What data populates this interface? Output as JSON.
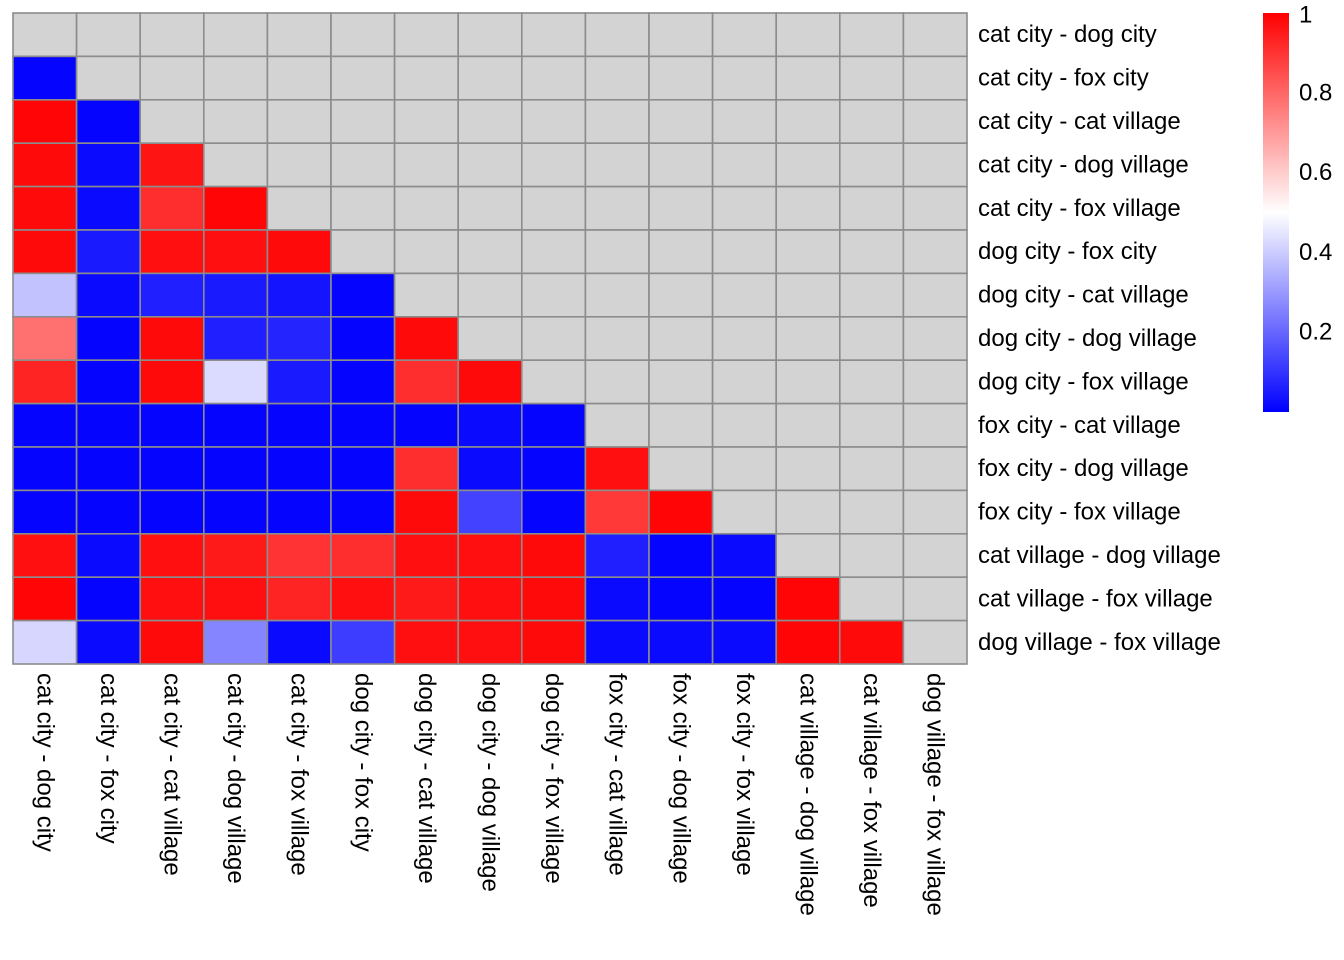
{
  "chart_data": {
    "type": "heatmap",
    "labels": [
      "cat city - dog city",
      "cat city - fox city",
      "cat city - cat village",
      "cat city - dog village",
      "cat city - fox village",
      "dog city - fox city",
      "dog city - cat village",
      "dog city - dog village",
      "dog city - fox village",
      "fox city - cat village",
      "fox city - dog village",
      "fox city - fox village",
      "cat village - dog village",
      "cat village - fox village",
      "dog village - fox village"
    ],
    "missing_color": "#d3d3d3",
    "color_scale": {
      "low": "#0000ff",
      "mid": "#ffffff",
      "high": "#ff0000",
      "min": 0,
      "mid_value": 0.5,
      "max": 1
    },
    "legend": {
      "position": "right",
      "ticks": [
        {
          "value": 1,
          "label": "1"
        },
        {
          "value": 0.8,
          "label": "0.8"
        },
        {
          "value": 0.6,
          "label": "0.6"
        },
        {
          "value": 0.4,
          "label": "0.4"
        },
        {
          "value": 0.2,
          "label": "0.2"
        }
      ]
    },
    "values": [
      [
        null,
        null,
        null,
        null,
        null,
        null,
        null,
        null,
        null,
        null,
        null,
        null,
        null,
        null,
        null
      ],
      [
        0.01,
        null,
        null,
        null,
        null,
        null,
        null,
        null,
        null,
        null,
        null,
        null,
        null,
        null,
        null
      ],
      [
        0.99,
        0.01,
        null,
        null,
        null,
        null,
        null,
        null,
        null,
        null,
        null,
        null,
        null,
        null,
        null
      ],
      [
        0.98,
        0.02,
        0.96,
        null,
        null,
        null,
        null,
        null,
        null,
        null,
        null,
        null,
        null,
        null,
        null
      ],
      [
        0.98,
        0.02,
        0.91,
        0.99,
        null,
        null,
        null,
        null,
        null,
        null,
        null,
        null,
        null,
        null,
        null
      ],
      [
        0.98,
        0.05,
        0.97,
        0.97,
        0.98,
        null,
        null,
        null,
        null,
        null,
        null,
        null,
        null,
        null,
        null
      ],
      [
        0.38,
        0.02,
        0.06,
        0.05,
        0.04,
        0.01,
        null,
        null,
        null,
        null,
        null,
        null,
        null,
        null,
        null
      ],
      [
        0.78,
        0.01,
        0.98,
        0.06,
        0.07,
        0.01,
        0.98,
        null,
        null,
        null,
        null,
        null,
        null,
        null,
        null
      ],
      [
        0.93,
        0.01,
        0.98,
        0.43,
        0.05,
        0.01,
        0.91,
        0.98,
        null,
        null,
        null,
        null,
        null,
        null,
        null
      ],
      [
        0.01,
        0.01,
        0.01,
        0.01,
        0.01,
        0.01,
        0.01,
        0.02,
        0.01,
        null,
        null,
        null,
        null,
        null,
        null
      ],
      [
        0.01,
        0.01,
        0.01,
        0.01,
        0.01,
        0.01,
        0.91,
        0.02,
        0.01,
        0.97,
        null,
        null,
        null,
        null,
        null
      ],
      [
        0.01,
        0.01,
        0.01,
        0.01,
        0.01,
        0.01,
        0.98,
        0.13,
        0.01,
        0.89,
        0.99,
        null,
        null,
        null,
        null
      ],
      [
        0.97,
        0.02,
        0.97,
        0.95,
        0.9,
        0.91,
        0.97,
        0.97,
        0.98,
        0.06,
        0.01,
        0.02,
        null,
        null,
        null
      ],
      [
        0.99,
        0.01,
        0.97,
        0.97,
        0.93,
        0.97,
        0.95,
        0.97,
        0.98,
        0.02,
        0.01,
        0.01,
        0.99,
        null,
        null
      ],
      [
        0.42,
        0.02,
        0.98,
        0.26,
        0.02,
        0.12,
        0.97,
        0.97,
        0.98,
        0.02,
        0.02,
        0.02,
        0.99,
        0.98,
        null
      ]
    ]
  }
}
